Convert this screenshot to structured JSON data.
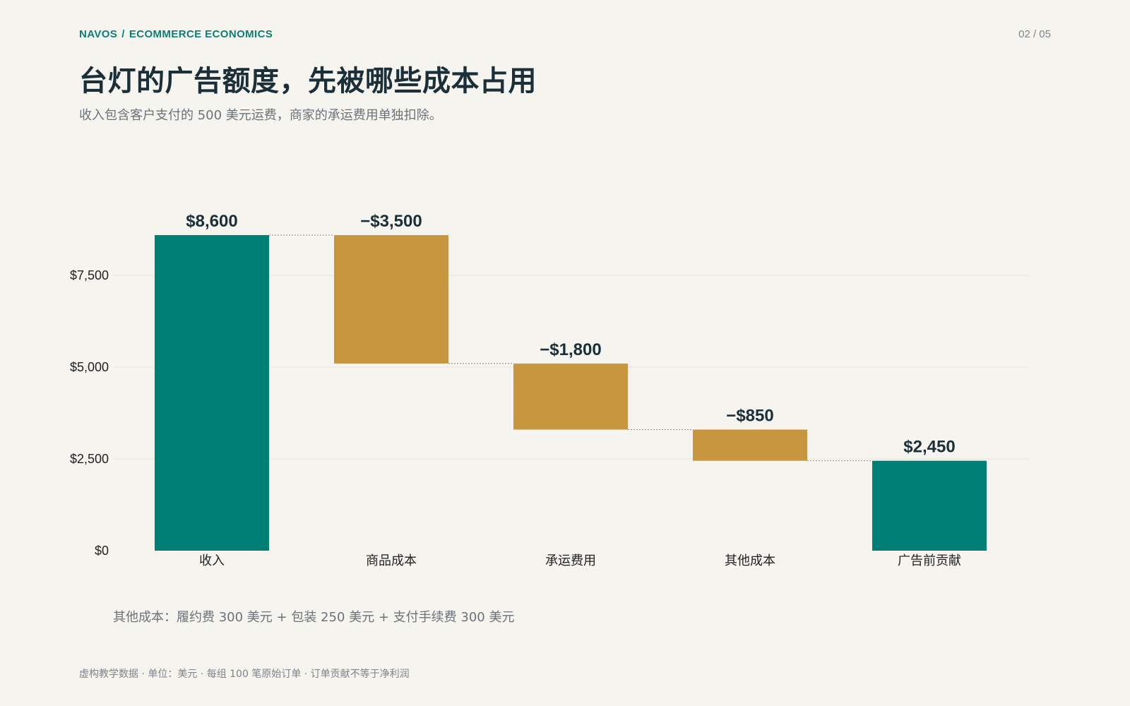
{
  "header": {
    "brand": "NAVOS",
    "separator": "/",
    "section": "ECOMMERCE ECONOMICS",
    "page_indicator": "02 / 05",
    "title": "台灯的广告额度，先被哪些成本占用",
    "subtitle": "收入包含客户支付的 500 美元运费，商家的承运费用单独扣除。"
  },
  "colors": {
    "total": "#007f74",
    "decrease": "#c8963e",
    "text": "#1b2f38",
    "grid": "#e8e5de",
    "connector": "#8a8a8a"
  },
  "chart_data": {
    "type": "bar",
    "subtype": "waterfall",
    "title": "",
    "xlabel": "",
    "ylabel": "",
    "ylim": [
      0,
      8600
    ],
    "yticks": [
      0,
      2500,
      5000,
      7500
    ],
    "ytick_labels": [
      "$0",
      "$2,500",
      "$5,000",
      "$7,500"
    ],
    "grid": true,
    "legend": "none",
    "categories": [
      "收入",
      "商品成本",
      "承运费用",
      "其他成本",
      "广告前贡献"
    ],
    "steps": [
      {
        "category": "收入",
        "kind": "total",
        "value": 8600,
        "label": "$8,600"
      },
      {
        "category": "商品成本",
        "kind": "decrease",
        "value": -3500,
        "label": "−$3,500"
      },
      {
        "category": "承运费用",
        "kind": "decrease",
        "value": -1800,
        "label": "−$1,800"
      },
      {
        "category": "其他成本",
        "kind": "decrease",
        "value": -850,
        "label": "−$850"
      },
      {
        "category": "广告前贡献",
        "kind": "total",
        "value": 2450,
        "label": "$2,450"
      }
    ]
  },
  "note": "其他成本：履约费 300 美元 + 包装 250 美元 + 支付手续费 300 美元",
  "footer": "虚构教学数据 · 单位：美元 · 每组 100 笔原始订单 · 订单贡献不等于净利润"
}
